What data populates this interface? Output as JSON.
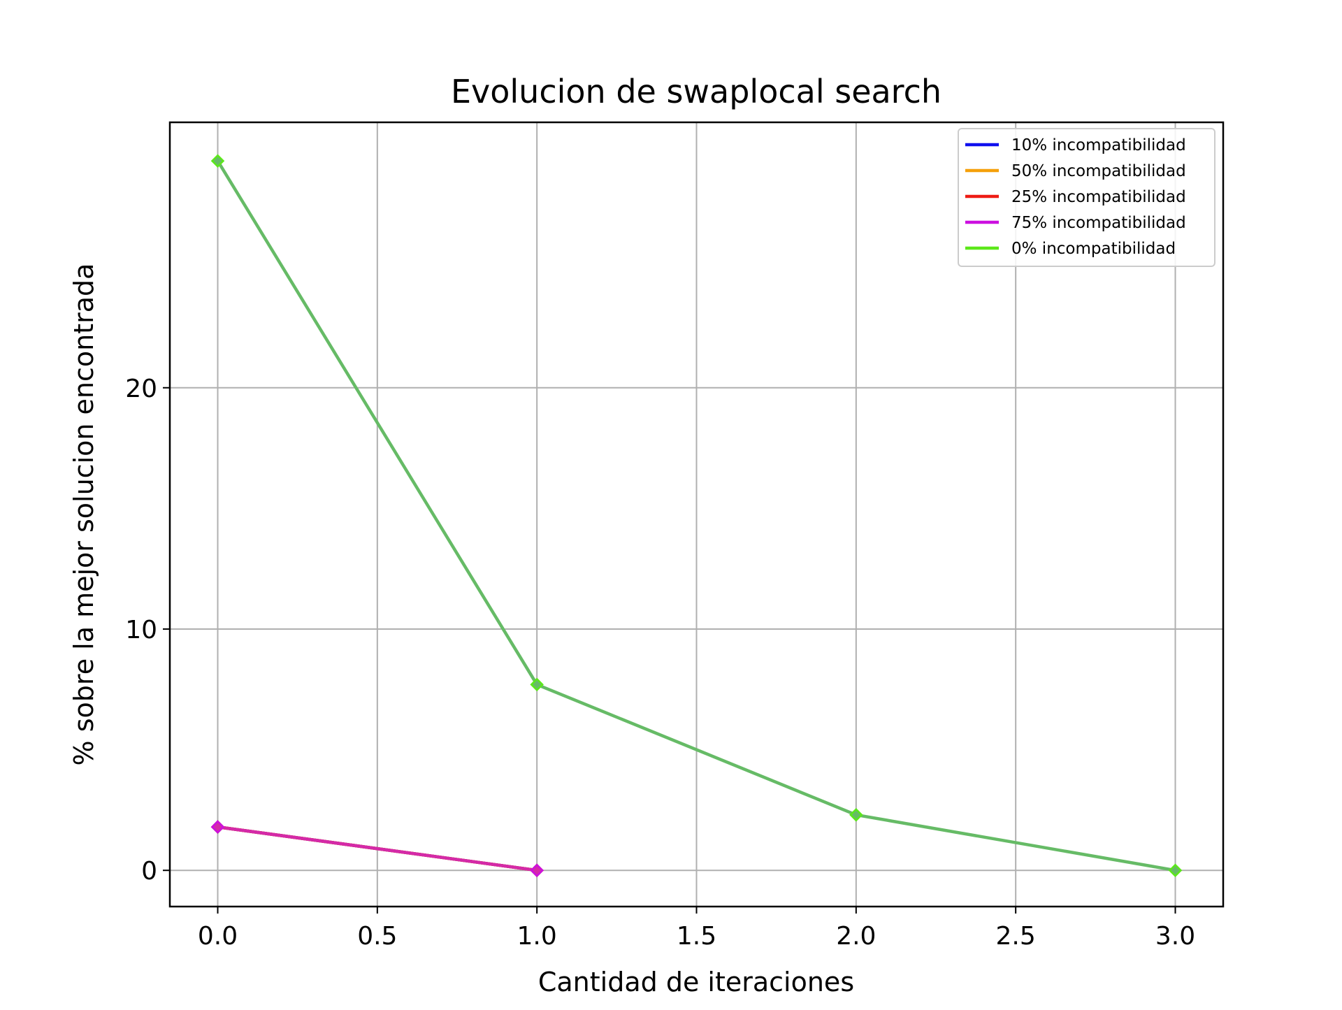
{
  "chart_data": {
    "type": "line",
    "title": "Evolucion de swaplocal search",
    "xlabel": "Cantidad de iteraciones",
    "ylabel": "% sobre la mejor solucion encontrada",
    "xlim": [
      -0.15,
      3.15
    ],
    "ylim": [
      -1.5,
      31.0
    ],
    "xticks": [
      0.0,
      0.5,
      1.0,
      1.5,
      2.0,
      2.5,
      3.0
    ],
    "xtick_labels": [
      "0.0",
      "0.5",
      "1.0",
      "1.5",
      "2.0",
      "2.5",
      "3.0"
    ],
    "yticks": [
      0,
      10,
      20
    ],
    "ytick_labels": [
      "0",
      "10",
      "20"
    ],
    "grid": true,
    "legend_position": "top-right",
    "series": [
      {
        "name": "10% incompatibilidad",
        "color": "#1010ee",
        "x": [
          0,
          1
        ],
        "y": [
          1.8,
          0.0
        ]
      },
      {
        "name": "50% incompatibilidad",
        "color": "#f5a00a",
        "x": [
          0,
          1
        ],
        "y": [
          1.8,
          0.0
        ]
      },
      {
        "name": "25% incompatibilidad",
        "color": "#ee1c14",
        "x": [
          0,
          1
        ],
        "y": [
          1.8,
          0.0
        ]
      },
      {
        "name": "75% incompatibilidad",
        "color": "#cc10e0",
        "x": [
          0,
          1
        ],
        "y": [
          1.8,
          0.0
        ]
      },
      {
        "name": "0% incompatibilidad",
        "color": "#5ce81a",
        "x": [
          0,
          1,
          2,
          3
        ],
        "y": [
          29.4,
          7.7,
          2.3,
          0.0
        ]
      }
    ],
    "rendered_line_colors": {
      "0% incompatibilidad": "#66bb66",
      "75% incompatibilidad": "#d42aa8"
    }
  }
}
